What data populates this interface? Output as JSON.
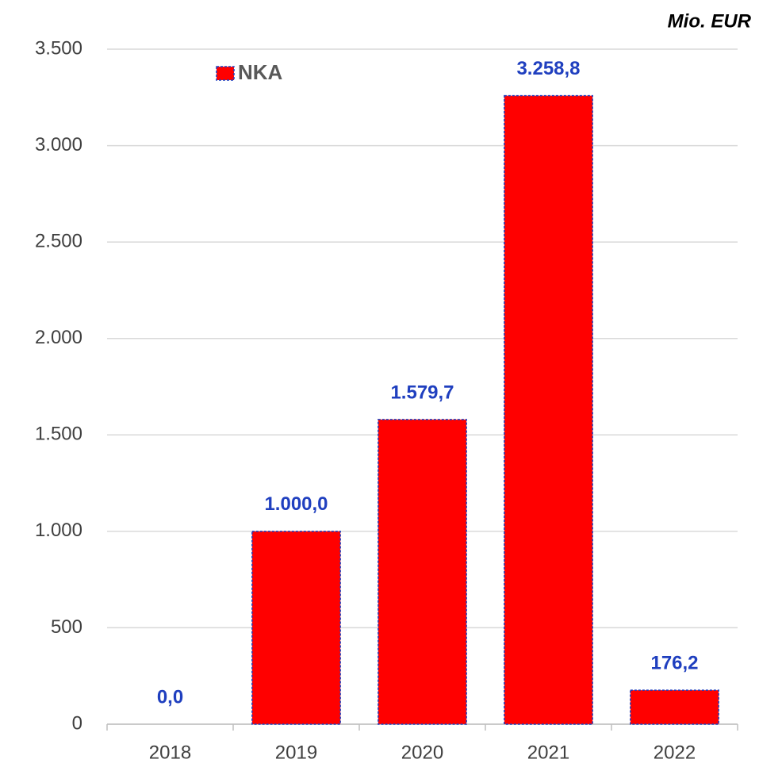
{
  "chart_data": {
    "type": "bar",
    "unit_label": "Mio. EUR",
    "categories": [
      "2018",
      "2019",
      "2020",
      "2021",
      "2022"
    ],
    "series": [
      {
        "name": "NKA",
        "color": "#ff0000",
        "border_color": "#1f3fbf",
        "values": [
          0,
          1000,
          1579.7,
          3258.8,
          176.2
        ],
        "value_labels": [
          "0,0",
          "1.000,0",
          "1.579,7",
          "3.258,8",
          "176,2"
        ]
      }
    ],
    "ylim": [
      0,
      3500
    ],
    "yticks": [
      0,
      500,
      {
        "value": 1000,
        "label": "1.000"
      },
      {
        "value": 1500,
        "label": "1.500"
      },
      {
        "value": 2000,
        "label": "2.000"
      },
      {
        "value": 2500,
        "label": "2.500"
      },
      {
        "value": 3000,
        "label": "3.000"
      },
      {
        "value": 3500,
        "label": "3.500"
      }
    ],
    "grid": true,
    "legend": "top-left"
  }
}
